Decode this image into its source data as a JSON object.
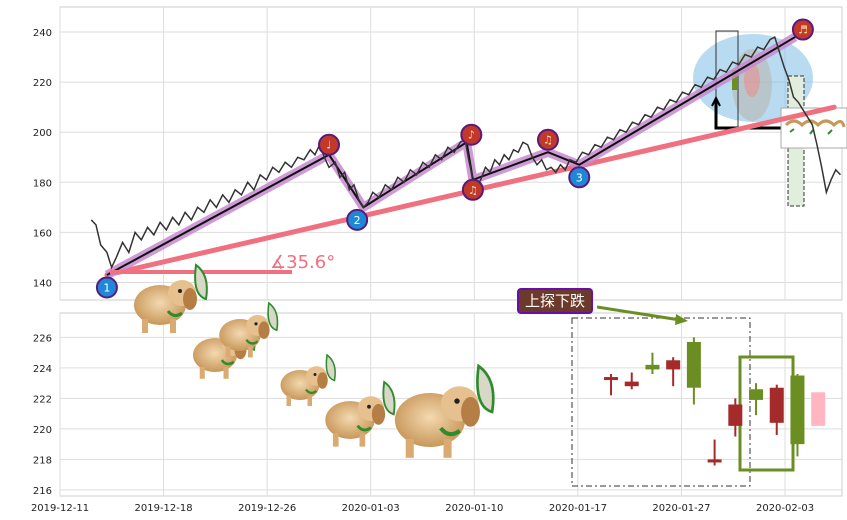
{
  "chart_data": [
    {
      "type": "line",
      "panel": "price",
      "ylim": [
        133,
        250
      ],
      "yticks": [
        140,
        160,
        180,
        200,
        220,
        240
      ],
      "colors": {
        "price": "#333333",
        "trend": "#f07080",
        "highlight": "#c78ad0",
        "marker_blue": "#1e88d8",
        "marker_red": "#c0392b"
      },
      "series": [
        {
          "values": [
            [
              2.0,
              165
            ],
            [
              2.3,
              163
            ],
            [
              2.6,
              155
            ],
            [
              3.0,
              152
            ],
            [
              3.3,
              146
            ],
            [
              3.6,
              150
            ],
            [
              4.0,
              156
            ],
            [
              4.4,
              152
            ],
            [
              4.8,
              160
            ],
            [
              5.2,
              157
            ],
            [
              5.6,
              162
            ],
            [
              6.0,
              159
            ],
            [
              6.4,
              164
            ],
            [
              6.8,
              161
            ],
            [
              7.2,
              166
            ],
            [
              7.6,
              163
            ],
            [
              8.0,
              168
            ],
            [
              8.4,
              165
            ],
            [
              8.8,
              170
            ],
            [
              9.2,
              168
            ],
            [
              9.6,
              173
            ],
            [
              10.0,
              170
            ],
            [
              10.4,
              175
            ],
            [
              10.8,
              172
            ],
            [
              11.2,
              177
            ],
            [
              11.6,
              175
            ],
            [
              12.0,
              180
            ],
            [
              12.4,
              177
            ],
            [
              12.8,
              183
            ],
            [
              13.2,
              181
            ],
            [
              13.6,
              186
            ],
            [
              14.0,
              184
            ],
            [
              14.4,
              188
            ],
            [
              14.8,
              186
            ],
            [
              15.2,
              190
            ],
            [
              15.6,
              189
            ],
            [
              16.0,
              193
            ],
            [
              16.3,
              191
            ],
            [
              16.6,
              195
            ],
            [
              16.9,
              190
            ],
            [
              17.2,
              186
            ],
            [
              17.6,
              188
            ],
            [
              17.9,
              182
            ],
            [
              18.2,
              184
            ],
            [
              18.5,
              177
            ],
            [
              18.8,
              179
            ],
            [
              19.1,
              173
            ],
            [
              19.4,
              170
            ],
            [
              19.7,
              172
            ],
            [
              20.0,
              176
            ],
            [
              20.4,
              174
            ],
            [
              20.8,
              179
            ],
            [
              21.2,
              177
            ],
            [
              21.6,
              182
            ],
            [
              22.0,
              180
            ],
            [
              22.4,
              185
            ],
            [
              22.8,
              183
            ],
            [
              23.2,
              188
            ],
            [
              23.6,
              186
            ],
            [
              24.0,
              191
            ],
            [
              24.4,
              189
            ],
            [
              24.8,
              194
            ],
            [
              25.2,
              192
            ],
            [
              25.6,
              196
            ],
            [
              25.9,
              197
            ],
            [
              26.1,
              190
            ],
            [
              26.3,
              184
            ],
            [
              26.6,
              178
            ],
            [
              26.9,
              181
            ],
            [
              27.2,
              186
            ],
            [
              27.5,
              184
            ],
            [
              27.8,
              189
            ],
            [
              28.1,
              187
            ],
            [
              28.4,
              191
            ],
            [
              28.7,
              189
            ],
            [
              29.0,
              193
            ],
            [
              29.3,
              192
            ],
            [
              29.6,
              196
            ],
            [
              29.9,
              195
            ],
            [
              30.2,
              190
            ],
            [
              30.5,
              187
            ],
            [
              30.8,
              189
            ],
            [
              31.1,
              185
            ],
            [
              31.4,
              186
            ],
            [
              31.7,
              184
            ],
            [
              32.0,
              187
            ],
            [
              32.3,
              185
            ],
            [
              32.6,
              189
            ],
            [
              33.0,
              188
            ],
            [
              33.4,
              192
            ],
            [
              33.8,
              191
            ],
            [
              34.2,
              195
            ],
            [
              34.6,
              194
            ],
            [
              35.0,
              198
            ],
            [
              35.4,
              197
            ],
            [
              35.8,
              201
            ],
            [
              36.2,
              200
            ],
            [
              36.6,
              204
            ],
            [
              37.0,
              203
            ],
            [
              37.4,
              207
            ],
            [
              37.8,
              206
            ],
            [
              38.2,
              210
            ],
            [
              38.6,
              209
            ],
            [
              39.0,
              213
            ],
            [
              39.4,
              212
            ],
            [
              39.8,
              216
            ],
            [
              40.2,
              215
            ],
            [
              40.6,
              219
            ],
            [
              41.0,
              218
            ],
            [
              41.4,
              222
            ],
            [
              41.8,
              221
            ],
            [
              42.2,
              225
            ],
            [
              42.6,
              224
            ],
            [
              43.0,
              228
            ],
            [
              43.4,
              227
            ],
            [
              43.8,
              231
            ],
            [
              44.2,
              230
            ],
            [
              44.6,
              234
            ],
            [
              45.0,
              233
            ],
            [
              45.4,
              237
            ],
            [
              45.7,
              238
            ],
            [
              46.0,
              232
            ],
            [
              46.3,
              226
            ],
            [
              46.6,
              221
            ],
            [
              46.9,
              214
            ],
            [
              47.2,
              212
            ],
            [
              47.5,
              209
            ],
            [
              47.8,
              206
            ],
            [
              48.1,
              203
            ],
            [
              48.4,
              195
            ],
            [
              48.7,
              186
            ],
            [
              49.0,
              176
            ],
            [
              49.3,
              181
            ],
            [
              49.6,
              185
            ],
            [
              49.9,
              183
            ]
          ]
        }
      ],
      "markers": [
        {
          "x": 3.0,
          "y": 138,
          "label": "1",
          "color": "blue"
        },
        {
          "x": 19.0,
          "y": 165,
          "label": "2",
          "color": "blue"
        },
        {
          "x": 33.2,
          "y": 182,
          "label": "3",
          "color": "blue"
        },
        {
          "x": 17.2,
          "y": 195,
          "label": "♩",
          "color": "red"
        },
        {
          "x": 26.3,
          "y": 199,
          "label": "♪",
          "color": "red"
        },
        {
          "x": 26.4,
          "y": 177,
          "label": "♫",
          "color": "red"
        },
        {
          "x": 31.2,
          "y": 197,
          "label": "♫",
          "color": "red"
        },
        {
          "x": 47.5,
          "y": 241,
          "label": "♬",
          "color": "red"
        }
      ],
      "angle_label": "∡35.6°"
    },
    {
      "type": "candlestick",
      "panel": "volume-candles",
      "ylim": [
        215.6,
        227.6
      ],
      "yticks": [
        216,
        218,
        220,
        222,
        224,
        226
      ],
      "xtick_labels": [
        "2019-12-11",
        "2019-12-18",
        "2019-12-26",
        "2020-01-03",
        "2020-01-10",
        "2020-01-17",
        "2020-01-27",
        "2020-02-03"
      ],
      "xtick_positions": [
        0,
        5,
        10,
        15,
        20,
        25,
        30,
        35
      ],
      "colors": {
        "up": "#6b8e23",
        "down": "#a52a2a",
        "pink": "#ffb6c1"
      },
      "candles": [
        {
          "x": 26.6,
          "open": 223.3,
          "close": 223.4,
          "high": 223.6,
          "low": 222.2,
          "dir": "down"
        },
        {
          "x": 27.6,
          "open": 223.1,
          "close": 222.8,
          "high": 223.7,
          "low": 222.6,
          "dir": "down"
        },
        {
          "x": 28.6,
          "open": 223.9,
          "close": 224.2,
          "high": 225.0,
          "low": 223.6,
          "dir": "up"
        },
        {
          "x": 29.6,
          "open": 224.5,
          "close": 223.9,
          "high": 224.7,
          "low": 222.8,
          "dir": "down"
        },
        {
          "x": 30.6,
          "open": 222.7,
          "close": 225.7,
          "high": 226.0,
          "low": 221.6,
          "dir": "up"
        },
        {
          "x": 31.6,
          "open": 218.0,
          "close": 217.8,
          "high": 219.3,
          "low": 217.6,
          "dir": "down"
        },
        {
          "x": 32.6,
          "open": 221.6,
          "close": 220.2,
          "high": 222.0,
          "low": 219.5,
          "dir": "down"
        },
        {
          "x": 33.6,
          "open": 221.9,
          "close": 222.6,
          "high": 223.0,
          "low": 220.9,
          "dir": "up"
        },
        {
          "x": 34.6,
          "open": 222.7,
          "close": 220.4,
          "high": 222.9,
          "low": 219.6,
          "dir": "down"
        },
        {
          "x": 35.6,
          "open": 219.0,
          "close": 223.5,
          "high": 223.6,
          "low": 218.2,
          "dir": "up"
        },
        {
          "x": 36.6,
          "open": 222.4,
          "close": 220.2,
          "high": 222.4,
          "low": 220.2,
          "dir": "pink"
        }
      ],
      "annotation": "上探下跌"
    }
  ]
}
